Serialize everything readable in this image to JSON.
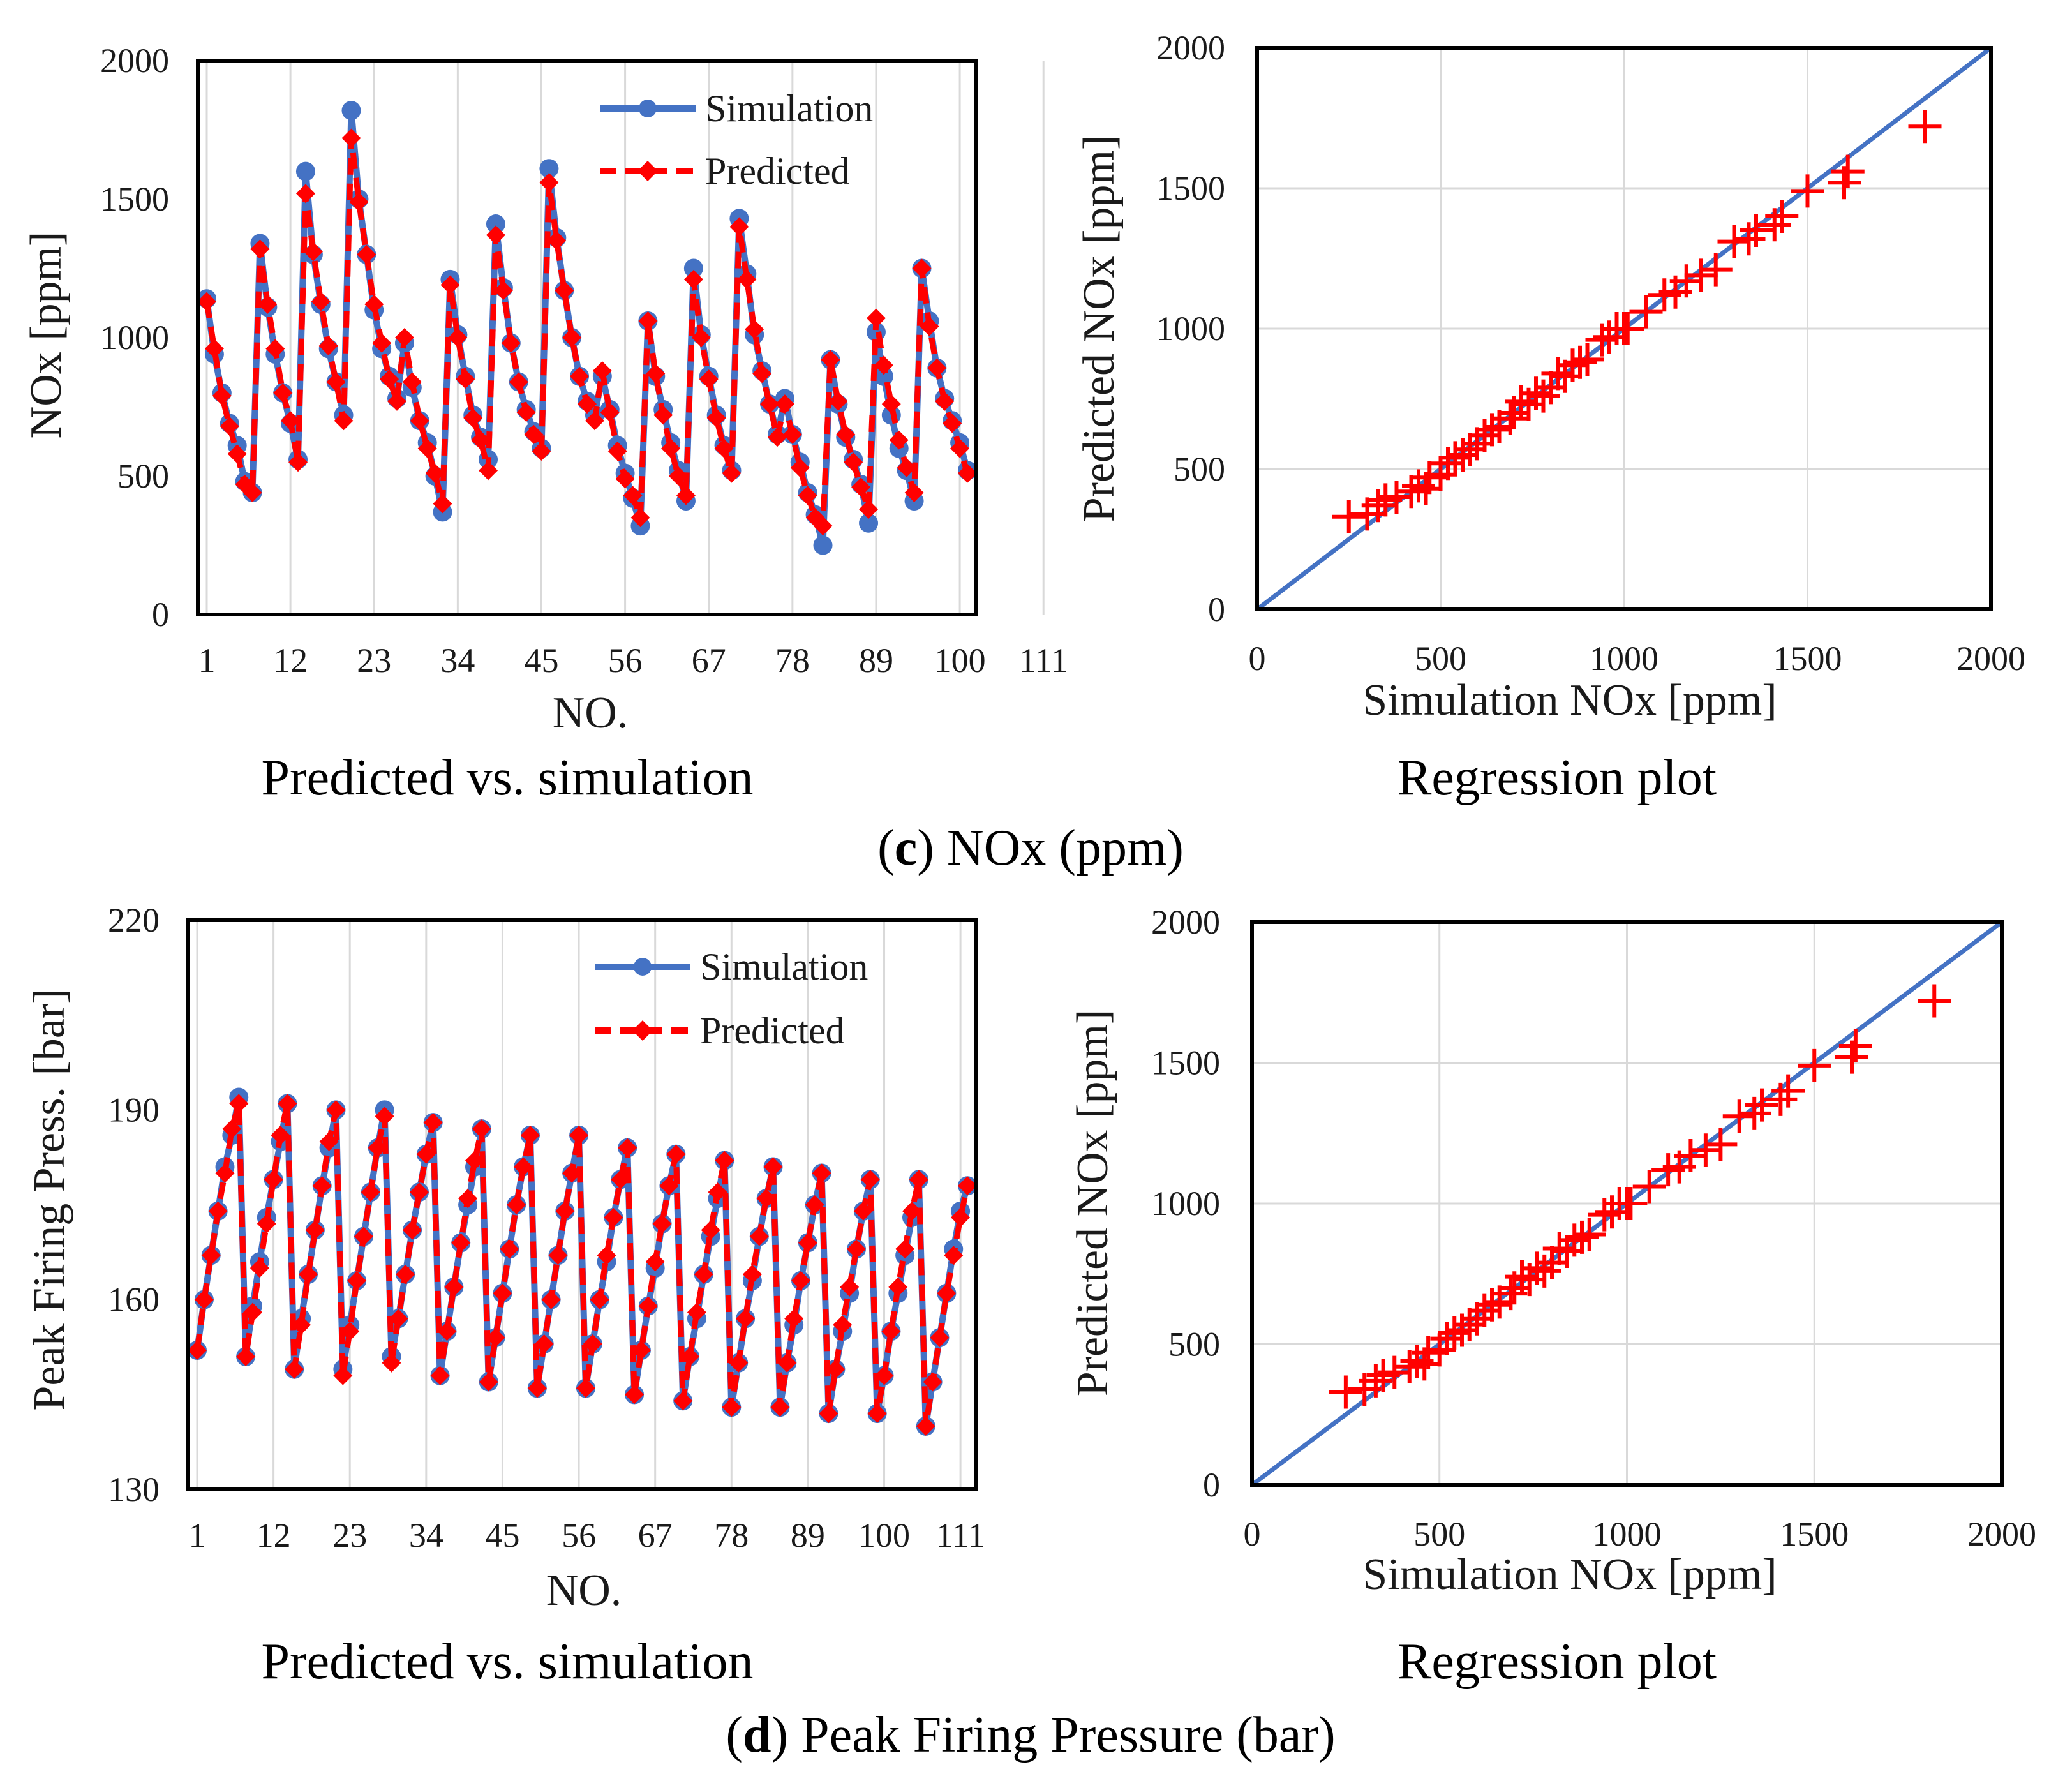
{
  "colors": {
    "simulation": "#4472C4",
    "predicted": "#FF0000",
    "regression_line": "#4472C4",
    "grid": "#D9D9D9",
    "frame": "#000000"
  },
  "captions": {
    "c": {
      "letter": "c",
      "open": "(",
      "close": ")",
      "text": " NOx (ppm)"
    },
    "d": {
      "letter": "d",
      "open": "(",
      "close": ")",
      "text": " Peak Firing Pressure (bar)"
    }
  },
  "chart_data": [
    {
      "id": "nox-line",
      "type": "line",
      "subtitle": "Predicted vs. simulation",
      "xlabel": "NO.",
      "ylabel": "NOx [ppm]",
      "ylim": [
        0,
        2000
      ],
      "yticks": [
        "0",
        "500",
        "1000",
        "1500",
        "2000"
      ],
      "xticks": [
        "1",
        "12",
        "23",
        "34",
        "45",
        "56",
        "67",
        "78",
        "89",
        "100",
        "111"
      ],
      "grid": "vertical",
      "legend": "top-right",
      "series": [
        {
          "name": "Simulation",
          "values": [
            1140,
            940,
            800,
            690,
            610,
            480,
            440,
            1340,
            1110,
            940,
            800,
            690,
            560,
            1600,
            1300,
            1120,
            960,
            840,
            720,
            1820,
            1500,
            1300,
            1100,
            960,
            860,
            780,
            980,
            820,
            700,
            620,
            500,
            370,
            1210,
            1010,
            860,
            720,
            640,
            560,
            1410,
            1180,
            980,
            840,
            740,
            660,
            600,
            1610,
            1360,
            1170,
            1000,
            860,
            770,
            720,
            860,
            740,
            610,
            510,
            420,
            320,
            1060,
            860,
            740,
            620,
            520,
            410,
            1250,
            1010,
            860,
            720,
            610,
            520,
            1430,
            1230,
            1010,
            880,
            760,
            650,
            780,
            650,
            550,
            440,
            360,
            250,
            920,
            760,
            640,
            560,
            470,
            330,
            1020,
            860,
            720,
            600,
            520,
            410,
            1250,
            1060,
            890,
            780,
            700,
            620,
            520
          ],
          "marker": "circle"
        },
        {
          "name": "Predicted",
          "values": [
            1130,
            960,
            790,
            680,
            580,
            470,
            440,
            1320,
            1120,
            960,
            800,
            700,
            550,
            1520,
            1310,
            1130,
            970,
            840,
            700,
            1720,
            1490,
            1300,
            1120,
            980,
            850,
            770,
            1000,
            840,
            700,
            600,
            510,
            400,
            1190,
            1000,
            850,
            710,
            630,
            520,
            1370,
            1170,
            980,
            840,
            730,
            650,
            590,
            1560,
            1350,
            1170,
            1000,
            860,
            760,
            700,
            880,
            730,
            590,
            490,
            430,
            350,
            1060,
            870,
            720,
            600,
            500,
            430,
            1210,
            1000,
            850,
            710,
            600,
            510,
            1400,
            1210,
            1030,
            870,
            760,
            640,
            760,
            650,
            530,
            430,
            350,
            320,
            920,
            770,
            650,
            550,
            460,
            380,
            1070,
            900,
            760,
            630,
            530,
            440,
            1250,
            1040,
            890,
            770,
            690,
            600,
            510
          ],
          "marker": "diamond"
        }
      ]
    },
    {
      "id": "nox-regression-1",
      "type": "scatter",
      "subtitle": "Regression plot",
      "xlabel": "Simulation NOx [ppm]",
      "ylabel": "Predicted NOx [ppm]",
      "xlim": [
        0,
        2000
      ],
      "ylim": [
        0,
        2000
      ],
      "xticks": [
        "0",
        "500",
        "1000",
        "1500",
        "2000"
      ],
      "yticks": [
        "0",
        "500",
        "1000",
        "1500",
        "2000"
      ],
      "grid": "both",
      "fit_line": {
        "x": [
          0,
          2000
        ],
        "y": [
          0,
          2000
        ]
      },
      "points": [
        [
          250,
          330
        ],
        [
          300,
          340
        ],
        [
          330,
          370
        ],
        [
          350,
          390
        ],
        [
          380,
          400
        ],
        [
          420,
          420
        ],
        [
          440,
          440
        ],
        [
          460,
          430
        ],
        [
          470,
          470
        ],
        [
          500,
          480
        ],
        [
          520,
          520
        ],
        [
          540,
          540
        ],
        [
          560,
          550
        ],
        [
          580,
          570
        ],
        [
          600,
          590
        ],
        [
          620,
          620
        ],
        [
          640,
          640
        ],
        [
          660,
          650
        ],
        [
          690,
          680
        ],
        [
          700,
          700
        ],
        [
          720,
          740
        ],
        [
          740,
          730
        ],
        [
          760,
          770
        ],
        [
          780,
          760
        ],
        [
          800,
          790
        ],
        [
          820,
          840
        ],
        [
          840,
          830
        ],
        [
          860,
          870
        ],
        [
          880,
          880
        ],
        [
          900,
          890
        ],
        [
          940,
          960
        ],
        [
          960,
          970
        ],
        [
          980,
          1000
        ],
        [
          1000,
          1000
        ],
        [
          1010,
          1000
        ],
        [
          1060,
          1060
        ],
        [
          1110,
          1120
        ],
        [
          1140,
          1130
        ],
        [
          1170,
          1170
        ],
        [
          1210,
          1190
        ],
        [
          1250,
          1210
        ],
        [
          1300,
          1310
        ],
        [
          1340,
          1320
        ],
        [
          1360,
          1350
        ],
        [
          1410,
          1370
        ],
        [
          1430,
          1400
        ],
        [
          1500,
          1490
        ],
        [
          1600,
          1520
        ],
        [
          1610,
          1560
        ],
        [
          1820,
          1720
        ]
      ],
      "marker": "plus"
    },
    {
      "id": "pfp-line",
      "type": "line",
      "subtitle": "Predicted vs. simulation",
      "xlabel": "NO.",
      "ylabel": "Peak Firing Press. [bar]",
      "ylim": [
        130,
        220
      ],
      "yticks": [
        "130",
        "160",
        "190",
        "220"
      ],
      "xticks": [
        "1",
        "12",
        "23",
        "34",
        "45",
        "56",
        "67",
        "78",
        "89",
        "100",
        "111"
      ],
      "grid": "vertical",
      "legend": "top-right",
      "series": [
        {
          "name": "Simulation",
          "values": [
            152,
            160,
            167,
            174,
            181,
            186,
            192,
            151,
            159,
            166,
            173,
            179,
            185,
            191,
            149,
            157,
            164,
            171,
            178,
            184,
            190,
            149,
            156,
            163,
            170,
            177,
            184,
            190,
            151,
            157,
            164,
            171,
            177,
            183,
            188,
            148,
            155,
            162,
            169,
            175,
            181,
            187,
            147,
            154,
            161,
            168,
            175,
            181,
            186,
            146,
            153,
            160,
            167,
            174,
            180,
            186,
            146,
            153,
            160,
            166,
            173,
            179,
            184,
            145,
            152,
            159,
            165,
            172,
            178,
            183,
            144,
            151,
            157,
            164,
            170,
            176,
            182,
            143,
            150,
            157,
            163,
            170,
            176,
            181,
            143,
            150,
            156,
            163,
            169,
            175,
            180,
            142,
            149,
            155,
            161,
            168,
            174,
            179,
            142,
            148,
            155,
            161,
            167,
            173,
            179,
            140,
            147,
            154,
            161,
            168,
            174,
            178
          ],
          "marker": "circle"
        },
        {
          "name": "Predicted",
          "values": [
            152,
            160,
            167,
            174,
            180,
            187,
            191,
            151,
            158,
            165,
            172,
            179,
            186,
            191,
            149,
            156,
            164,
            171,
            178,
            185,
            190,
            148,
            155,
            163,
            170,
            177,
            184,
            189,
            150,
            157,
            164,
            171,
            177,
            183,
            188,
            148,
            155,
            162,
            169,
            176,
            182,
            187,
            147,
            154,
            161,
            168,
            175,
            181,
            186,
            146,
            153,
            160,
            167,
            174,
            180,
            186,
            146,
            153,
            160,
            167,
            173,
            179,
            184,
            145,
            152,
            159,
            166,
            172,
            178,
            183,
            144,
            151,
            158,
            164,
            171,
            177,
            182,
            143,
            150,
            157,
            164,
            170,
            176,
            181,
            143,
            150,
            157,
            163,
            169,
            175,
            180,
            142,
            149,
            156,
            162,
            168,
            174,
            179,
            142,
            148,
            155,
            162,
            168,
            174,
            179,
            140,
            147,
            154,
            161,
            167,
            173,
            178
          ],
          "marker": "diamond"
        }
      ]
    },
    {
      "id": "nox-regression-2",
      "type": "scatter",
      "subtitle": "Regression plot",
      "xlabel": "Simulation NOx [ppm]",
      "ylabel": "Predicted NOx [ppm]",
      "xlim": [
        0,
        2000
      ],
      "ylim": [
        0,
        2000
      ],
      "xticks": [
        "0",
        "500",
        "1000",
        "1500",
        "2000"
      ],
      "yticks": [
        "0",
        "500",
        "1000",
        "1500",
        "2000"
      ],
      "grid": "both",
      "fit_line": {
        "x": [
          0,
          2000
        ],
        "y": [
          0,
          2000
        ]
      },
      "points": [
        [
          250,
          330
        ],
        [
          300,
          340
        ],
        [
          330,
          370
        ],
        [
          350,
          390
        ],
        [
          380,
          400
        ],
        [
          420,
          420
        ],
        [
          440,
          440
        ],
        [
          460,
          430
        ],
        [
          470,
          470
        ],
        [
          500,
          480
        ],
        [
          520,
          520
        ],
        [
          540,
          540
        ],
        [
          560,
          550
        ],
        [
          580,
          570
        ],
        [
          600,
          590
        ],
        [
          620,
          620
        ],
        [
          640,
          640
        ],
        [
          660,
          650
        ],
        [
          690,
          680
        ],
        [
          700,
          700
        ],
        [
          720,
          740
        ],
        [
          740,
          730
        ],
        [
          760,
          770
        ],
        [
          780,
          760
        ],
        [
          800,
          790
        ],
        [
          820,
          840
        ],
        [
          840,
          830
        ],
        [
          860,
          870
        ],
        [
          880,
          880
        ],
        [
          900,
          890
        ],
        [
          940,
          960
        ],
        [
          960,
          970
        ],
        [
          980,
          1000
        ],
        [
          1000,
          1000
        ],
        [
          1010,
          1000
        ],
        [
          1060,
          1060
        ],
        [
          1110,
          1120
        ],
        [
          1140,
          1130
        ],
        [
          1170,
          1170
        ],
        [
          1210,
          1190
        ],
        [
          1250,
          1210
        ],
        [
          1300,
          1310
        ],
        [
          1340,
          1320
        ],
        [
          1360,
          1350
        ],
        [
          1410,
          1370
        ],
        [
          1430,
          1400
        ],
        [
          1500,
          1490
        ],
        [
          1600,
          1520
        ],
        [
          1610,
          1560
        ],
        [
          1820,
          1720
        ]
      ],
      "marker": "plus"
    }
  ]
}
